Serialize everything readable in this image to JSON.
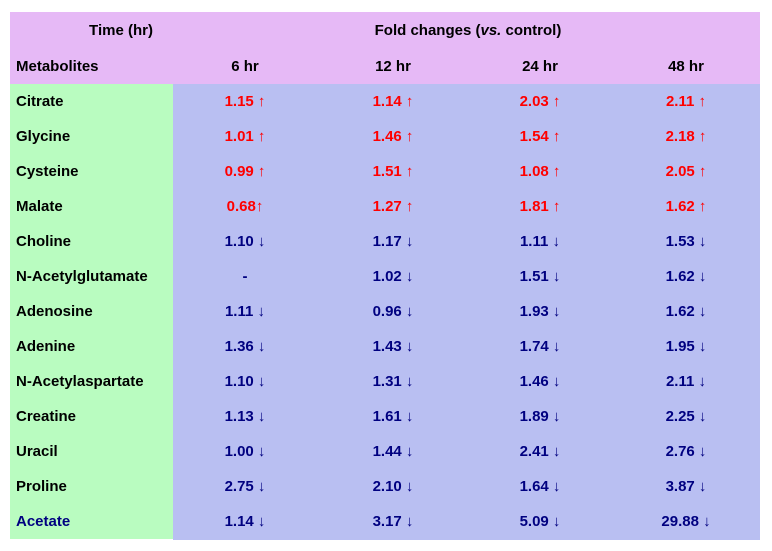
{
  "header": {
    "time": "Time (hr)",
    "fold_changes": {
      "before": "Fold changes (",
      "italic": "vs.",
      "after": " control)"
    },
    "metabolites": "Metabolites",
    "columns": [
      "6 hr",
      "12 hr",
      "24 hr",
      "48 hr"
    ]
  },
  "table": {
    "rows": [
      {
        "name": "Citrate",
        "label_color": "#000000",
        "color": "#ff0000",
        "cells": [
          "1.15 ↑",
          "1.14 ↑",
          "2.03 ↑",
          "2.11 ↑"
        ]
      },
      {
        "name": "Glycine",
        "label_color": "#000000",
        "color": "#ff0000",
        "cells": [
          "1.01 ↑",
          "1.46 ↑",
          "1.54 ↑",
          "2.18 ↑"
        ]
      },
      {
        "name": "Cysteine",
        "label_color": "#000000",
        "color": "#ff0000",
        "cells": [
          "0.99 ↑",
          "1.51 ↑",
          "1.08 ↑",
          "2.05 ↑"
        ]
      },
      {
        "name": "Malate",
        "label_color": "#000000",
        "color": "#ff0000",
        "cells": [
          "0.68↑",
          "1.27 ↑",
          "1.81 ↑",
          "1.62 ↑"
        ]
      },
      {
        "name": "Choline",
        "label_color": "#000000",
        "color": "#000080",
        "cells": [
          "1.10 ↓",
          "1.17 ↓",
          "1.11 ↓",
          "1.53 ↓"
        ]
      },
      {
        "name": "N-Acetylglutamate",
        "label_color": "#000000",
        "color": "#000080",
        "cells": [
          "-",
          "1.02 ↓",
          "1.51 ↓",
          "1.62 ↓"
        ]
      },
      {
        "name": "Adenosine",
        "label_color": "#000000",
        "color": "#000080",
        "cells": [
          "1.11 ↓",
          "0.96 ↓",
          "1.93 ↓",
          "1.62 ↓"
        ]
      },
      {
        "name": "Adenine",
        "label_color": "#000000",
        "color": "#000080",
        "cells": [
          "1.36 ↓",
          "1.43 ↓",
          "1.74 ↓",
          "1.95 ↓"
        ]
      },
      {
        "name": "N-Acetylaspartate",
        "label_color": "#000000",
        "color": "#000080",
        "cells": [
          "1.10 ↓",
          "1.31 ↓",
          "1.46 ↓",
          "2.11 ↓"
        ]
      },
      {
        "name": "Creatine",
        "label_color": "#000000",
        "color": "#000080",
        "cells": [
          "1.13 ↓",
          "1.61 ↓",
          "1.89 ↓",
          "2.25 ↓"
        ]
      },
      {
        "name": "Uracil",
        "label_color": "#000000",
        "color": "#000080",
        "cells": [
          "1.00 ↓",
          "1.44 ↓",
          "2.41 ↓",
          "2.76 ↓"
        ]
      },
      {
        "name": "Proline",
        "label_color": "#000000",
        "color": "#000080",
        "cells": [
          "2.75 ↓",
          "2.10 ↓",
          "1.64 ↓",
          "3.87 ↓"
        ]
      },
      {
        "name": "Acetate",
        "label_color": "#000080",
        "color": "#000080",
        "cells": [
          "1.14 ↓",
          "3.17 ↓",
          "5.09 ↓",
          "29.88 ↓"
        ]
      }
    ]
  }
}
